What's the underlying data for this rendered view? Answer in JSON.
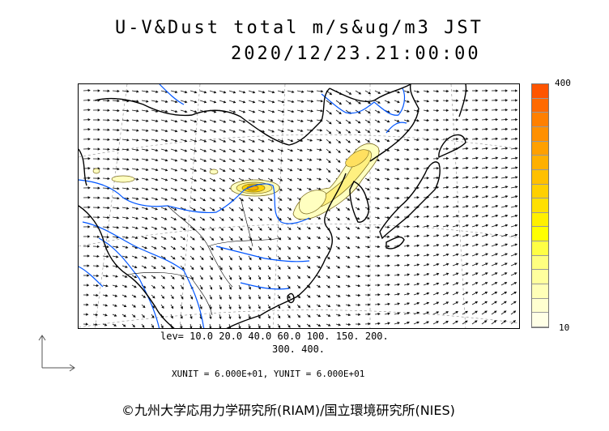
{
  "header": {
    "title": "U-V&Dust total m/s&ug/m3 JST",
    "datetime": "2020/12/23.21:00:00"
  },
  "legend": {
    "max_label": "400",
    "min_label": "10",
    "colors": [
      "#ffffe6",
      "#ffffd0",
      "#ffffb8",
      "#ffff9e",
      "#ffff80",
      "#ffff44",
      "#ffff00",
      "#fff000",
      "#ffe000",
      "#ffd000",
      "#ffc000",
      "#ffb000",
      "#ffa000",
      "#ff9000",
      "#ff8000",
      "#ff6a00",
      "#ff5500"
    ]
  },
  "levels": {
    "line1": "lev= 10.0 20.0 40.0 60.0 100. 150. 200.",
    "line2": "300. 400."
  },
  "units": {
    "text": "XUNIT = 6.000E+01, YUNIT = 6.000E+01"
  },
  "credit": {
    "text": "©九州大学応用力学研究所(RIAM)/国立環境研究所(NIES)"
  },
  "colors": {
    "coast": "#000000",
    "river": "#0055ff",
    "contour": "#7a6a20",
    "dust_light": "#ffffc0",
    "dust_mid": "#fff080",
    "dust_high": "#ffc000"
  }
}
